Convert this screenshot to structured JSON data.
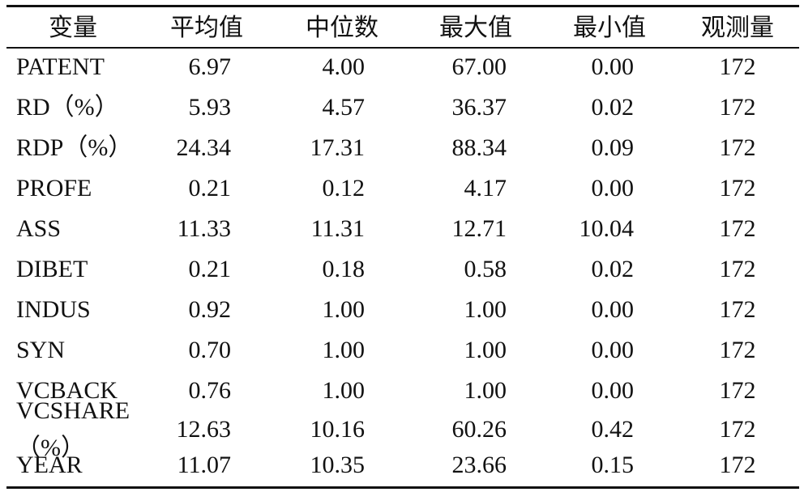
{
  "table": {
    "header": [
      "变量",
      "平均值",
      "中位数",
      "最大值",
      "最小值",
      "观测量"
    ],
    "rows": [
      [
        "PATENT",
        "6.97",
        "4.00",
        "67.00",
        "0.00",
        "172"
      ],
      [
        "RD（%）",
        "5.93",
        "4.57",
        "36.37",
        "0.02",
        "172"
      ],
      [
        "RDP（%）",
        "24.34",
        "17.31",
        "88.34",
        "0.09",
        "172"
      ],
      [
        "PROFE",
        "0.21",
        "0.12",
        "4.17",
        "0.00",
        "172"
      ],
      [
        "ASS",
        "11.33",
        "11.31",
        "12.71",
        "10.04",
        "172"
      ],
      [
        "DIBET",
        "0.21",
        "0.18",
        "0.58",
        "0.02",
        "172"
      ],
      [
        "INDUS",
        "0.92",
        "1.00",
        "1.00",
        "0.00",
        "172"
      ],
      [
        "SYN",
        "0.70",
        "1.00",
        "1.00",
        "0.00",
        "172"
      ],
      [
        "VCBACK",
        "0.76",
        "1.00",
        "1.00",
        "0.00",
        "172"
      ],
      [
        "VCSHARE（%）",
        "12.63",
        "10.16",
        "60.26",
        "0.42",
        "172"
      ],
      [
        "YEAR",
        "11.07",
        "10.35",
        "23.66",
        "0.15",
        "172"
      ]
    ]
  }
}
